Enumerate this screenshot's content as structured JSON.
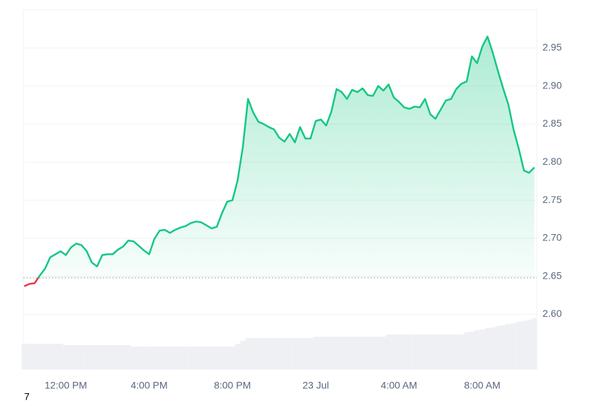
{
  "chart_data": {
    "type": "line",
    "x": [
      10.0,
      10.25,
      10.5,
      10.75,
      11.0,
      11.25,
      11.5,
      11.75,
      12.0,
      12.25,
      12.5,
      12.75,
      13.0,
      13.25,
      13.5,
      13.75,
      14.0,
      14.25,
      14.5,
      14.75,
      15.0,
      15.25,
      15.5,
      15.75,
      16.0,
      16.25,
      16.5,
      16.75,
      17.0,
      17.25,
      17.5,
      17.75,
      18.0,
      18.25,
      18.5,
      18.75,
      19.0,
      19.25,
      19.5,
      19.75,
      20.0,
      20.25,
      20.5,
      20.75,
      21.0,
      21.25,
      21.5,
      21.75,
      22.0,
      22.25,
      22.5,
      22.75,
      23.0,
      23.25,
      23.5,
      23.75,
      24.0,
      24.25,
      24.5,
      24.75,
      25.0,
      25.25,
      25.5,
      25.75,
      26.0,
      26.25,
      26.5,
      26.75,
      27.0,
      27.25,
      27.5,
      27.75,
      28.0,
      28.25,
      28.5,
      28.75,
      29.0,
      29.25,
      29.5,
      29.75,
      30.0,
      30.25,
      30.5,
      30.75,
      31.0,
      31.25,
      31.5,
      31.75,
      32.0,
      32.25,
      32.5,
      32.75,
      33.0,
      33.25,
      33.5,
      33.75,
      34.0,
      34.25,
      34.5
    ],
    "series": [
      {
        "color": "#16c784",
        "values": [
          2.637,
          2.64,
          2.641,
          2.651,
          2.66,
          2.675,
          2.679,
          2.683,
          2.678,
          2.688,
          2.693,
          2.691,
          2.683,
          2.668,
          2.663,
          2.678,
          2.679,
          2.679,
          2.685,
          2.689,
          2.697,
          2.696,
          2.69,
          2.684,
          2.679,
          2.699,
          2.71,
          2.711,
          2.707,
          2.711,
          2.714,
          2.716,
          2.72,
          2.722,
          2.721,
          2.717,
          2.713,
          2.715,
          2.733,
          2.748,
          2.75,
          2.776,
          2.82,
          2.883,
          2.865,
          2.853,
          2.85,
          2.846,
          2.843,
          2.832,
          2.827,
          2.837,
          2.826,
          2.846,
          2.831,
          2.831,
          2.854,
          2.856,
          2.848,
          2.866,
          2.896,
          2.892,
          2.883,
          2.895,
          2.892,
          2.897,
          2.888,
          2.887,
          2.9,
          2.894,
          2.902,
          2.885,
          2.879,
          2.872,
          2.87,
          2.873,
          2.872,
          2.883,
          2.863,
          2.857,
          2.869,
          2.881,
          2.883,
          2.896,
          2.903,
          2.906,
          2.939,
          2.93,
          2.952,
          2.965,
          2.944,
          2.92,
          2.897,
          2.876,
          2.843,
          2.818,
          2.789,
          2.786,
          2.793
        ]
      }
    ],
    "volume": [
      36,
      36,
      36,
      36,
      36,
      36,
      36,
      36,
      34,
      34,
      34,
      34,
      34,
      34,
      34,
      34,
      34,
      34,
      34,
      34,
      34,
      32,
      32,
      32,
      32,
      32,
      32,
      32,
      32,
      32,
      32,
      32,
      32,
      32,
      32,
      32,
      32,
      32,
      32,
      32,
      32,
      36,
      40,
      44,
      44,
      44,
      44,
      44,
      44,
      44,
      44,
      44,
      44,
      44,
      44,
      44,
      46,
      46,
      46,
      46,
      46,
      46,
      46,
      46,
      46,
      46,
      46,
      46,
      46,
      46,
      49,
      49,
      49,
      49,
      49,
      49,
      49,
      49,
      49,
      49,
      49,
      49,
      49,
      49,
      49,
      52,
      53,
      55,
      56,
      58,
      59,
      61,
      62,
      64,
      65,
      67,
      68,
      70,
      72
    ],
    "baseline": 2.648,
    "down_color": "#ea3943",
    "xlim": [
      9.96,
      34.62
    ],
    "xticks": [
      {
        "value": 12,
        "label": "12:00 PM"
      },
      {
        "value": 16,
        "label": "4:00 PM"
      },
      {
        "value": 20,
        "label": "8:00 PM"
      },
      {
        "value": 24,
        "label": "23 Jul"
      },
      {
        "value": 28,
        "label": "4:00 AM"
      },
      {
        "value": 32,
        "label": "8:00 AM"
      }
    ],
    "ylim": [
      2.528,
      3.0
    ],
    "yticks": [
      {
        "value": 2.6,
        "label": "2.60"
      },
      {
        "value": 2.65,
        "label": "2.65"
      },
      {
        "value": 2.7,
        "label": "2.70"
      },
      {
        "value": 2.75,
        "label": "2.75"
      },
      {
        "value": 2.8,
        "label": "2.80"
      },
      {
        "value": 2.85,
        "label": "2.85"
      },
      {
        "value": 2.9,
        "label": "2.90"
      },
      {
        "value": 2.95,
        "label": "2.95"
      }
    ],
    "grid": true,
    "corner_label": "7"
  }
}
